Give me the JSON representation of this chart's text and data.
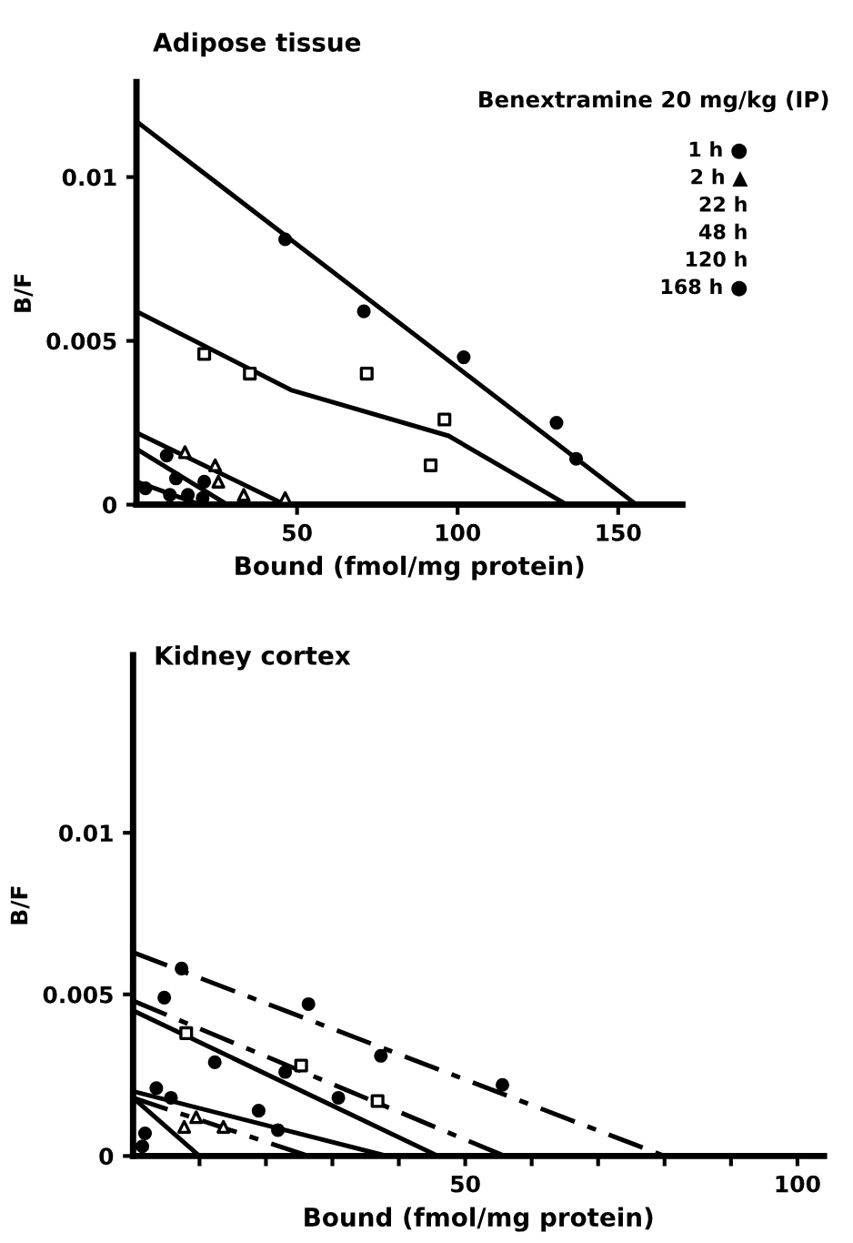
{
  "chart_data": [
    {
      "type": "scatter",
      "title": "Adipose tissue",
      "subtitle": "Benextramine 20 mg/kg (IP)",
      "xlabel": "Bound (fmol/mg protein)",
      "ylabel": "B/F",
      "xlim": [
        0,
        170
      ],
      "ylim": [
        0,
        0.0129
      ],
      "xticks": [
        50,
        100,
        150
      ],
      "yticks": [
        0,
        0.005,
        0.01
      ],
      "grid": false,
      "legend": false,
      "annotations": [
        "1 h ●",
        "2 h ▲",
        "22 h",
        "48 h",
        "120 h",
        "168 h ●"
      ],
      "series": [
        {
          "marker": "circle",
          "color": "#000000",
          "x": [
            46.3,
            70.8,
            101.9,
            130.8,
            136.9
          ],
          "values": [
            0.0081,
            0.0059,
            0.0045,
            0.0025,
            0.0014
          ]
        },
        {
          "type": "line",
          "line_style": "solid",
          "color": "#000000",
          "x": [
            0,
            155.7
          ],
          "values": [
            0.0117,
            0
          ]
        },
        {
          "marker": "square",
          "color": "#000000",
          "x": [
            21.1,
            35.3,
            71.7,
            95.9,
            91.6
          ],
          "values": [
            0.0046,
            0.004,
            0.004,
            0.0026,
            0.0012
          ]
        },
        {
          "type": "line",
          "line_style": "solid",
          "color": "#000000",
          "x": [
            0,
            48.1,
            97.2,
            134
          ],
          "values": [
            0.0059,
            0.0035,
            0.0021,
            0
          ]
        },
        {
          "marker": "triangle",
          "color": "#000000",
          "x": [
            15.1,
            24.5,
            25.5,
            33.4,
            46.3
          ],
          "values": [
            0.0016,
            0.0012,
            0.0007,
            0.0003,
            0.0002
          ]
        },
        {
          "type": "line",
          "line_style": "solid",
          "color": "#000000",
          "x": [
            0,
            46.3
          ],
          "values": [
            0.0022,
            0
          ]
        },
        {
          "marker": "circle",
          "color": "#000000",
          "x": [
            9.4,
            12.3,
            21.1
          ],
          "values": [
            0.0015,
            0.0008,
            0.0007
          ]
        },
        {
          "type": "line",
          "line_style": "solid",
          "color": "#000000",
          "x": [
            0,
            28.3
          ],
          "values": [
            0.0017,
            0
          ]
        },
        {
          "marker": "circle",
          "color": "#000000",
          "x": [
            2.8,
            10.4,
            16,
            20.6
          ],
          "values": [
            0.0005,
            0.0003,
            0.0003,
            0.0002
          ]
        },
        {
          "type": "line",
          "line_style": "solid",
          "color": "#000000",
          "x": [
            0,
            19.8
          ],
          "values": [
            0.0007,
            0
          ]
        }
      ]
    },
    {
      "type": "scatter",
      "title": "Kidney cortex",
      "xlabel": "Bound (fmol/mg protein)",
      "ylabel": "B/F",
      "xlim": [
        0,
        104
      ],
      "ylim": [
        0,
        0.0155
      ],
      "xticks": [
        {
          "value": 10,
          "label": null
        },
        {
          "value": 20,
          "label": null
        },
        {
          "value": 30,
          "label": null
        },
        {
          "value": 40,
          "label": null
        },
        50,
        {
          "value": 60,
          "label": null
        },
        {
          "value": 70,
          "label": null
        },
        {
          "value": 80,
          "label": null
        },
        {
          "value": 90,
          "label": null
        },
        100
      ],
      "yticks": [
        0,
        0.005,
        0.01
      ],
      "grid": false,
      "legend": false,
      "series": [
        {
          "marker": "circle",
          "color": "#000000",
          "x": [
            7.3,
            26.4,
            37.3,
            55.6
          ],
          "values": [
            0.0058,
            0.0047,
            0.0031,
            0.0022
          ]
        },
        {
          "type": "line",
          "line_style": "dashed",
          "color": "#000000",
          "x": [
            0,
            80
          ],
          "values": [
            0.0063,
            0
          ]
        },
        {
          "marker": "circle",
          "color": "#000000",
          "x": [
            4.7,
            12.3,
            22.9,
            30.9
          ],
          "values": [
            0.0049,
            0.0029,
            0.0026,
            0.0018
          ]
        },
        {
          "type": "line",
          "line_style": "solid",
          "color": "#000000",
          "x": [
            0,
            45.9
          ],
          "values": [
            0.0045,
            0
          ]
        },
        {
          "marker": "square",
          "color": "#000000",
          "x": [
            8,
            25.3,
            36.8
          ],
          "values": [
            0.0038,
            0.0028,
            0.0017
          ]
        },
        {
          "type": "line",
          "line_style": "dashed",
          "color": "#000000",
          "x": [
            0,
            55.9
          ],
          "values": [
            0.0048,
            0
          ]
        },
        {
          "marker": "circle",
          "color": "#000000",
          "x": [
            3.5,
            5.7,
            18.9,
            21.8
          ],
          "values": [
            0.0021,
            0.0018,
            0.0014,
            0.0008
          ]
        },
        {
          "type": "line",
          "line_style": "solid",
          "color": "#000000",
          "x": [
            0,
            38.2
          ],
          "values": [
            0.002,
            0
          ]
        },
        {
          "marker": "triangle",
          "color": "#000000",
          "x": [
            7.7,
            9.5,
            13.6
          ],
          "values": [
            0.0009,
            0.0012,
            0.0009
          ]
        },
        {
          "type": "line",
          "line_style": "dashed",
          "color": "#000000",
          "x": [
            0,
            26.4
          ],
          "values": [
            0.0018,
            0
          ]
        },
        {
          "type": "line",
          "line_style": "solid",
          "color": "#000000",
          "x": [
            0,
            10
          ],
          "values": [
            0.0018,
            0
          ]
        },
        {
          "marker": "circle",
          "color": "#000000",
          "x": [
            1.8,
            1.4
          ],
          "values": [
            0.0007,
            0.0003
          ]
        }
      ]
    }
  ]
}
